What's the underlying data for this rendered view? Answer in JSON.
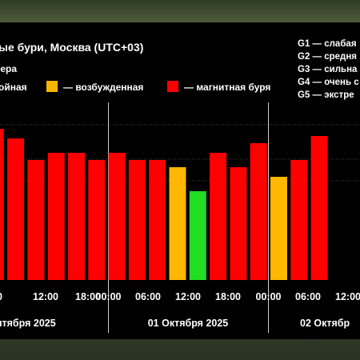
{
  "header": {
    "title": "ые бури, Москва (UTC+03)",
    "subtitle": "фера"
  },
  "legend": [
    {
      "label": "ойная",
      "color": null
    },
    {
      "label": "— возбужденная",
      "color": "#f7b500"
    },
    {
      "label": "— магнитная буря",
      "color": "#ff0000"
    }
  ],
  "g_levels": [
    "G1 — слабая",
    "G2 — средня",
    "G3 — сильна",
    "G4 — очень с",
    "G5 — экстре"
  ],
  "colors": {
    "storm": "#ff0000",
    "active": "#ffb700",
    "quiet": "#22dd22",
    "panel": "#000000",
    "grid": "#555555",
    "divider": "#cfcfcf"
  },
  "chart_data": {
    "type": "bar",
    "x_tick_labels": [
      "00",
      "12:00",
      "18:00",
      "00:00",
      "06:00",
      "12:00",
      "18:00",
      "00:00",
      "06:00",
      "12:00"
    ],
    "date_labels": [
      "ентября 2025",
      "01 Октября 2025",
      "02 Октябр"
    ],
    "bars": [
      {
        "time": "30 Sep 03:00",
        "value": 6.3,
        "level": "storm"
      },
      {
        "time": "30 Sep 06:00",
        "value": 5.9,
        "level": "storm"
      },
      {
        "time": "30 Sep 09:00",
        "value": 5.0,
        "level": "storm"
      },
      {
        "time": "30 Sep 12:00",
        "value": 5.3,
        "level": "storm"
      },
      {
        "time": "30 Sep 15:00",
        "value": 5.3,
        "level": "storm"
      },
      {
        "time": "30 Sep 18:00",
        "value": 5.0,
        "level": "storm"
      },
      {
        "time": "30 Sep 21:00",
        "value": 5.3,
        "level": "storm"
      },
      {
        "time": "01 Oct 00:00",
        "value": 5.0,
        "level": "storm"
      },
      {
        "time": "01 Oct 03:00",
        "value": 5.0,
        "level": "storm"
      },
      {
        "time": "01 Oct 06:00",
        "value": 4.7,
        "level": "active"
      },
      {
        "time": "01 Oct 09:00",
        "value": 3.7,
        "level": "quiet"
      },
      {
        "time": "01 Oct 12:00",
        "value": 5.3,
        "level": "storm"
      },
      {
        "time": "01 Oct 15:00",
        "value": 4.7,
        "level": "storm"
      },
      {
        "time": "01 Oct 18:00",
        "value": 5.7,
        "level": "storm"
      },
      {
        "time": "01 Oct 21:00",
        "value": 4.3,
        "level": "active"
      },
      {
        "time": "02 Oct 00:00",
        "value": 5.0,
        "level": "storm"
      },
      {
        "time": "02 Oct 03:00",
        "value": 6.0,
        "level": "storm"
      }
    ],
    "ylim": [
      0,
      9
    ],
    "grid": true
  }
}
